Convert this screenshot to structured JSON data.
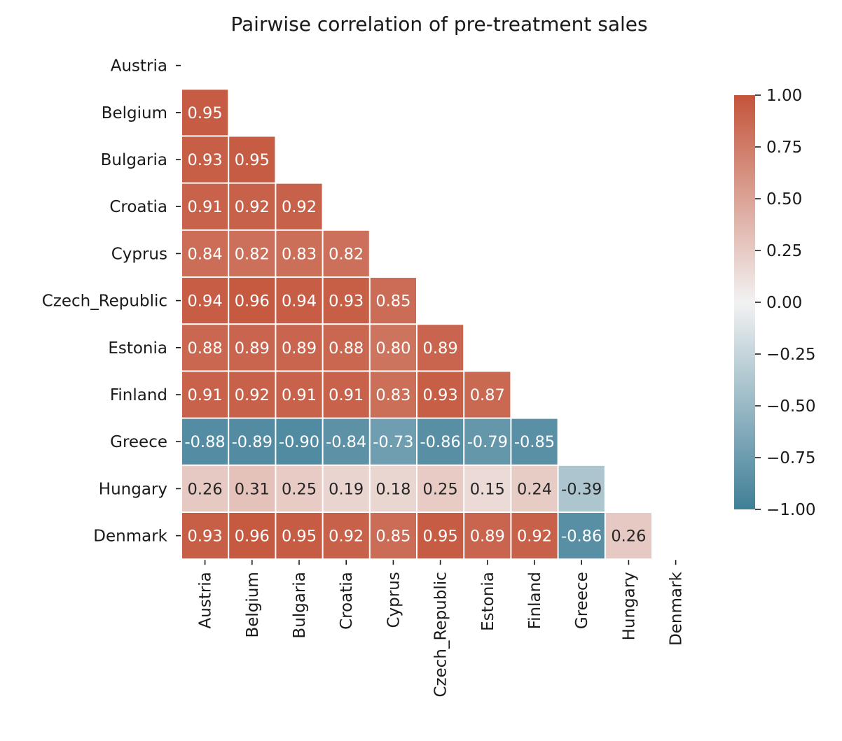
{
  "chart_data": {
    "type": "heatmap",
    "title": "Pairwise correlation of pre-treatment sales",
    "rows": [
      "Austria",
      "Belgium",
      "Bulgaria",
      "Croatia",
      "Cyprus",
      "Czech_Republic",
      "Estonia",
      "Finland",
      "Greece",
      "Hungary",
      "Denmark"
    ],
    "columns": [
      "Austria",
      "Belgium",
      "Bulgaria",
      "Croatia",
      "Cyprus",
      "Czech_Republic",
      "Estonia",
      "Finland",
      "Greece",
      "Hungary",
      "Denmark"
    ],
    "mask": "upper triangle including diagonal",
    "values": [
      [],
      [
        0.95
      ],
      [
        0.93,
        0.95
      ],
      [
        0.91,
        0.92,
        0.92
      ],
      [
        0.84,
        0.82,
        0.83,
        0.82
      ],
      [
        0.94,
        0.96,
        0.94,
        0.93,
        0.85
      ],
      [
        0.88,
        0.89,
        0.89,
        0.88,
        0.8,
        0.89
      ],
      [
        0.91,
        0.92,
        0.91,
        0.91,
        0.83,
        0.93,
        0.87
      ],
      [
        -0.88,
        -0.89,
        -0.9,
        -0.84,
        -0.73,
        -0.86,
        -0.79,
        -0.85
      ],
      [
        0.26,
        0.31,
        0.25,
        0.19,
        0.18,
        0.25,
        0.15,
        0.24,
        -0.39
      ],
      [
        0.93,
        0.96,
        0.95,
        0.92,
        0.85,
        0.95,
        0.89,
        0.92,
        -0.86,
        0.26
      ]
    ],
    "value_format": "2 decimals",
    "colormap": {
      "type": "diverging",
      "low_color": "#3f7f98",
      "mid_color": "#f2f2f2",
      "high_color": "#c4543a"
    },
    "colorbar": {
      "range": [
        -1.0,
        1.0
      ],
      "ticks": [
        1.0,
        0.75,
        0.5,
        0.25,
        0.0,
        -0.25,
        -0.5,
        -0.75,
        -1.0
      ],
      "tick_labels": [
        "1.00",
        "0.75",
        "0.50",
        "0.25",
        "0.00",
        "−0.25",
        "−0.50",
        "−0.75",
        "−1.00"
      ]
    },
    "legend_position": "right"
  }
}
